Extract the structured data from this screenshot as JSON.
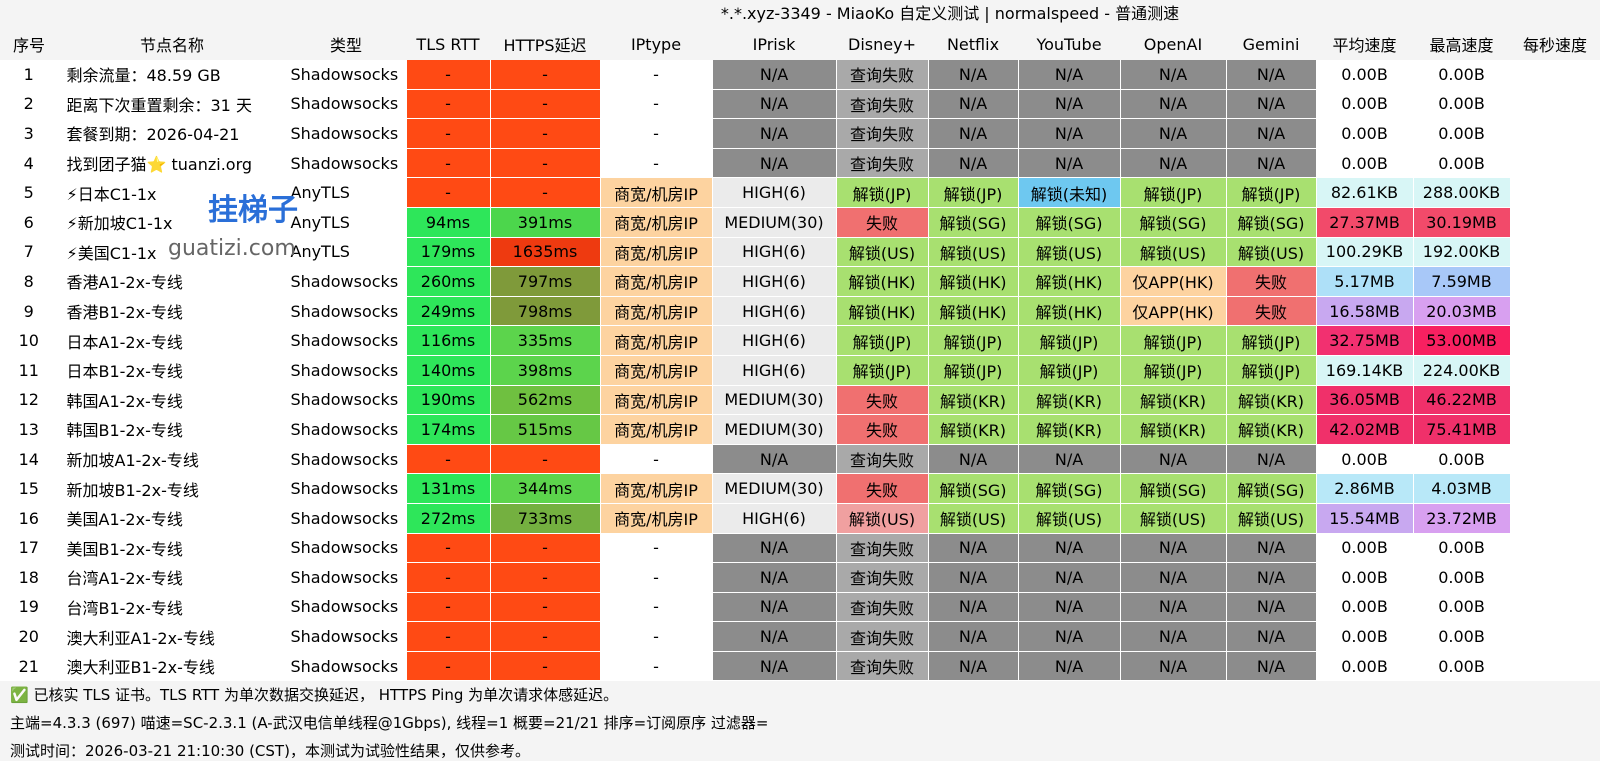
{
  "header": {
    "title": "*.*.xyz-3349 - MiaoKo 自定义测试 | normalspeed - 普通测速"
  },
  "watermark": [
    "挂梯子",
    "guatizi.com"
  ],
  "table": {
    "columns": [
      "序号",
      "节点名称",
      "类型",
      "TLS RTT",
      "HTTPS延迟",
      "IPtype",
      "IPrisk",
      "Disney+",
      "Netflix",
      "YouTube",
      "OpenAI",
      "Gemini",
      "平均速度",
      "最高速度",
      "每秒速度"
    ],
    "rows": [
      [
        "1",
        "剩余流量：48.59 GB",
        "Shadowsocks",
        "-",
        "-",
        "-",
        "N/A",
        "查询失败",
        "N/A",
        "N/A",
        "N/A",
        "N/A",
        "0.00B",
        "0.00B"
      ],
      [
        "2",
        "距离下次重置剩余：31 天",
        "Shadowsocks",
        "-",
        "-",
        "-",
        "N/A",
        "查询失败",
        "N/A",
        "N/A",
        "N/A",
        "N/A",
        "0.00B",
        "0.00B"
      ],
      [
        "3",
        "套餐到期：2026-04-21",
        "Shadowsocks",
        "-",
        "-",
        "-",
        "N/A",
        "查询失败",
        "N/A",
        "N/A",
        "N/A",
        "N/A",
        "0.00B",
        "0.00B"
      ],
      [
        "4",
        "找到团子猫⭐ tuanzi.org",
        "Shadowsocks",
        "-",
        "-",
        "-",
        "N/A",
        "查询失败",
        "N/A",
        "N/A",
        "N/A",
        "N/A",
        "0.00B",
        "0.00B"
      ],
      [
        "5",
        "⚡日本C1-1x",
        "AnyTLS",
        "-",
        "-",
        "商宽/机房IP",
        "HIGH(6)",
        "解锁(JP)",
        "解锁(JP)",
        "解锁(未知)",
        "解锁(JP)",
        "解锁(JP)",
        "82.61KB",
        "288.00KB"
      ],
      [
        "6",
        "⚡新加坡C1-1x",
        "AnyTLS",
        "94ms",
        "391ms",
        "商宽/机房IP",
        "MEDIUM(30)",
        "失败",
        "解锁(SG)",
        "解锁(SG)",
        "解锁(SG)",
        "解锁(SG)",
        "27.37MB",
        "30.19MB"
      ],
      [
        "7",
        "⚡美国C1-1x",
        "AnyTLS",
        "179ms",
        "1635ms",
        "商宽/机房IP",
        "HIGH(6)",
        "解锁(US)",
        "解锁(US)",
        "解锁(US)",
        "解锁(US)",
        "解锁(US)",
        "100.29KB",
        "192.00KB"
      ],
      [
        "8",
        "香港A1-2x-专线",
        "Shadowsocks",
        "260ms",
        "797ms",
        "商宽/机房IP",
        "HIGH(6)",
        "解锁(HK)",
        "解锁(HK)",
        "解锁(HK)",
        "仅APP(HK)",
        "失败",
        "5.17MB",
        "7.59MB"
      ],
      [
        "9",
        "香港B1-2x-专线",
        "Shadowsocks",
        "249ms",
        "798ms",
        "商宽/机房IP",
        "HIGH(6)",
        "解锁(HK)",
        "解锁(HK)",
        "解锁(HK)",
        "仅APP(HK)",
        "失败",
        "16.58MB",
        "20.03MB"
      ],
      [
        "10",
        "日本A1-2x-专线",
        "Shadowsocks",
        "116ms",
        "335ms",
        "商宽/机房IP",
        "HIGH(6)",
        "解锁(JP)",
        "解锁(JP)",
        "解锁(JP)",
        "解锁(JP)",
        "解锁(JP)",
        "32.75MB",
        "53.00MB"
      ],
      [
        "11",
        "日本B1-2x-专线",
        "Shadowsocks",
        "140ms",
        "398ms",
        "商宽/机房IP",
        "HIGH(6)",
        "解锁(JP)",
        "解锁(JP)",
        "解锁(JP)",
        "解锁(JP)",
        "解锁(JP)",
        "169.14KB",
        "224.00KB"
      ],
      [
        "12",
        "韩国A1-2x-专线",
        "Shadowsocks",
        "190ms",
        "562ms",
        "商宽/机房IP",
        "MEDIUM(30)",
        "失败",
        "解锁(KR)",
        "解锁(KR)",
        "解锁(KR)",
        "解锁(KR)",
        "36.05MB",
        "46.22MB"
      ],
      [
        "13",
        "韩国B1-2x-专线",
        "Shadowsocks",
        "174ms",
        "515ms",
        "商宽/机房IP",
        "MEDIUM(30)",
        "失败",
        "解锁(KR)",
        "解锁(KR)",
        "解锁(KR)",
        "解锁(KR)",
        "42.02MB",
        "75.41MB"
      ],
      [
        "14",
        "新加坡A1-2x-专线",
        "Shadowsocks",
        "-",
        "-",
        "-",
        "N/A",
        "查询失败",
        "N/A",
        "N/A",
        "N/A",
        "N/A",
        "0.00B",
        "0.00B"
      ],
      [
        "15",
        "新加坡B1-2x-专线",
        "Shadowsocks",
        "131ms",
        "344ms",
        "商宽/机房IP",
        "MEDIUM(30)",
        "失败",
        "解锁(SG)",
        "解锁(SG)",
        "解锁(SG)",
        "解锁(SG)",
        "2.86MB",
        "4.03MB"
      ],
      [
        "16",
        "美国A1-2x-专线",
        "Shadowsocks",
        "272ms",
        "733ms",
        "商宽/机房IP",
        "HIGH(6)",
        "解锁(US)",
        "解锁(US)",
        "解锁(US)",
        "解锁(US)",
        "解锁(US)",
        "15.54MB",
        "23.72MB"
      ],
      [
        "17",
        "美国B1-2x-专线",
        "Shadowsocks",
        "-",
        "-",
        "-",
        "N/A",
        "查询失败",
        "N/A",
        "N/A",
        "N/A",
        "N/A",
        "0.00B",
        "0.00B"
      ],
      [
        "18",
        "台湾A1-2x-专线",
        "Shadowsocks",
        "-",
        "-",
        "-",
        "N/A",
        "查询失败",
        "N/A",
        "N/A",
        "N/A",
        "N/A",
        "0.00B",
        "0.00B"
      ],
      [
        "19",
        "台湾B1-2x-专线",
        "Shadowsocks",
        "-",
        "-",
        "-",
        "N/A",
        "查询失败",
        "N/A",
        "N/A",
        "N/A",
        "N/A",
        "0.00B",
        "0.00B"
      ],
      [
        "20",
        "澳大利亚A1-2x-专线",
        "Shadowsocks",
        "-",
        "-",
        "-",
        "N/A",
        "查询失败",
        "N/A",
        "N/A",
        "N/A",
        "N/A",
        "0.00B",
        "0.00B"
      ],
      [
        "21",
        "澳大利亚B1-2x-专线",
        "Shadowsocks",
        "-",
        "-",
        "-",
        "N/A",
        "查询失败",
        "N/A",
        "N/A",
        "N/A",
        "N/A",
        "0.00B",
        "0.00B"
      ]
    ],
    "cell_colors": [
      [
        "#ff4a14",
        "#ff4a14",
        "#ffffff",
        "#8c8c8c",
        "#a9a9a9",
        "#8c8c8c",
        "#8c8c8c",
        "#8c8c8c",
        "#8c8c8c",
        "#ffffff",
        "#ffffff"
      ],
      [
        "#ff4a14",
        "#ff4a14",
        "#ffffff",
        "#8c8c8c",
        "#a9a9a9",
        "#8c8c8c",
        "#8c8c8c",
        "#8c8c8c",
        "#8c8c8c",
        "#ffffff",
        "#ffffff"
      ],
      [
        "#ff4a14",
        "#ff4a14",
        "#ffffff",
        "#8c8c8c",
        "#a9a9a9",
        "#8c8c8c",
        "#8c8c8c",
        "#8c8c8c",
        "#8c8c8c",
        "#ffffff",
        "#ffffff"
      ],
      [
        "#ff4a14",
        "#ff4a14",
        "#ffffff",
        "#8c8c8c",
        "#a9a9a9",
        "#8c8c8c",
        "#8c8c8c",
        "#8c8c8c",
        "#8c8c8c",
        "#ffffff",
        "#ffffff"
      ],
      [
        "#ff4a14",
        "#ff4a14",
        "#fdd3a0",
        "#ebebeb",
        "#a8e070",
        "#a8e070",
        "#6ec8f0",
        "#a8e070",
        "#a8e070",
        "#d8f6f6",
        "#d8f6f6"
      ],
      [
        "#2ee65a",
        "#4cd64c",
        "#fdd3a0",
        "#ebebeb",
        "#f07070",
        "#a8e070",
        "#a8e070",
        "#a8e070",
        "#a8e070",
        "#f24a6a",
        "#f24a6a"
      ],
      [
        "#2ee65a",
        "#ee3a10",
        "#fdd3a0",
        "#ebebeb",
        "#a8e070",
        "#a8e070",
        "#a8e070",
        "#a8e070",
        "#a8e070",
        "#d8f6f6",
        "#d8f6f6"
      ],
      [
        "#2ee65a",
        "#7f9a3a",
        "#fdd3a0",
        "#ebebeb",
        "#a8e070",
        "#a8e070",
        "#a8e070",
        "#fdd3a0",
        "#f07070",
        "#aee0f8",
        "#a8c8f8"
      ],
      [
        "#2ee65a",
        "#7f9a3a",
        "#fdd3a0",
        "#ebebeb",
        "#a8e070",
        "#a8e070",
        "#a8e070",
        "#fdd3a0",
        "#f07070",
        "#c8a8f0",
        "#d8a0f0"
      ],
      [
        "#2ee65a",
        "#5cd44c",
        "#fdd3a0",
        "#ebebeb",
        "#a8e070",
        "#a8e070",
        "#a8e070",
        "#a8e070",
        "#a8e070",
        "#f23070",
        "#f82060"
      ],
      [
        "#2ee65a",
        "#5cd44c",
        "#fdd3a0",
        "#ebebeb",
        "#a8e070",
        "#a8e070",
        "#a8e070",
        "#a8e070",
        "#a8e070",
        "#d8f6f6",
        "#d8f6f6"
      ],
      [
        "#2ee65a",
        "#6fc040",
        "#fdd3a0",
        "#ebebeb",
        "#f07070",
        "#a8e070",
        "#a8e070",
        "#a8e070",
        "#a8e070",
        "#f0306a",
        "#f0306a"
      ],
      [
        "#2ee65a",
        "#66c845",
        "#fdd3a0",
        "#ebebeb",
        "#f07070",
        "#a8e070",
        "#a8e070",
        "#a8e070",
        "#a8e070",
        "#f0306a",
        "#f0306a"
      ],
      [
        "#ff4a14",
        "#ff4a14",
        "#ffffff",
        "#8c8c8c",
        "#a9a9a9",
        "#8c8c8c",
        "#8c8c8c",
        "#8c8c8c",
        "#8c8c8c",
        "#ffffff",
        "#ffffff"
      ],
      [
        "#2ee65a",
        "#5cd44c",
        "#fdd3a0",
        "#ebebeb",
        "#f07070",
        "#a8e070",
        "#a8e070",
        "#a8e070",
        "#a8e070",
        "#b8e8f8",
        "#b8e8f8"
      ],
      [
        "#2ee65a",
        "#74b040",
        "#fdd3a0",
        "#ebebeb",
        "#f0a0a0",
        "#a8e070",
        "#a8e070",
        "#a8e070",
        "#a8e070",
        "#c8a8f0",
        "#d8a0f0"
      ],
      [
        "#ff4a14",
        "#ff4a14",
        "#ffffff",
        "#8c8c8c",
        "#a9a9a9",
        "#8c8c8c",
        "#8c8c8c",
        "#8c8c8c",
        "#8c8c8c",
        "#ffffff",
        "#ffffff"
      ],
      [
        "#ff4a14",
        "#ff4a14",
        "#ffffff",
        "#8c8c8c",
        "#a9a9a9",
        "#8c8c8c",
        "#8c8c8c",
        "#8c8c8c",
        "#8c8c8c",
        "#ffffff",
        "#ffffff"
      ],
      [
        "#ff4a14",
        "#ff4a14",
        "#ffffff",
        "#8c8c8c",
        "#a9a9a9",
        "#8c8c8c",
        "#8c8c8c",
        "#8c8c8c",
        "#8c8c8c",
        "#ffffff",
        "#ffffff"
      ],
      [
        "#ff4a14",
        "#ff4a14",
        "#ffffff",
        "#8c8c8c",
        "#a9a9a9",
        "#8c8c8c",
        "#8c8c8c",
        "#8c8c8c",
        "#8c8c8c",
        "#ffffff",
        "#ffffff"
      ],
      [
        "#ff4a14",
        "#ff4a14",
        "#ffffff",
        "#8c8c8c",
        "#a9a9a9",
        "#8c8c8c",
        "#8c8c8c",
        "#8c8c8c",
        "#8c8c8c",
        "#ffffff",
        "#ffffff"
      ]
    ]
  },
  "footer": {
    "lines": [
      "✅ 已核实 TLS 证书。TLS RTT 为单次数据交换延迟， HTTPS Ping 为单次请求体感延迟。",
      "主端=4.3.3 (697) 喵速=SC-2.3.1 (A-武汉电信单线程@1Gbps), 线程=1 概要=21/21 排序=订阅原序 过滤器=",
      "测试时间：2026-03-21 21:10:30 (CST)，本测试为试验性结果，仅供参考。"
    ]
  }
}
